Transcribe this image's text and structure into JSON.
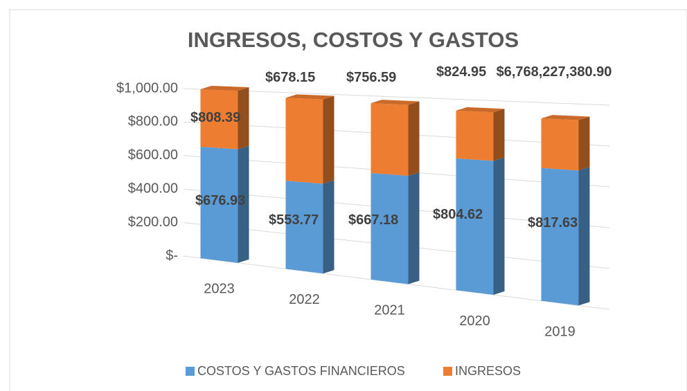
{
  "chart_data": {
    "type": "bar",
    "stacked": true,
    "title": "INGRESOS, COSTOS Y GASTOS",
    "categories": [
      "2023",
      "2022",
      "2021",
      "2020",
      "2019"
    ],
    "series": [
      {
        "name": "COSTOS Y GASTOS FINANCIEROS",
        "color": "#5b9bd5",
        "values": [
          660,
          500,
          580,
          690,
          670
        ]
      },
      {
        "name": "INGRESOS",
        "color": "#ed7d31",
        "values": [
          340,
          470,
          380,
          250,
          250
        ]
      }
    ],
    "annotations": [
      "$676.93",
      "$553.77",
      "$667.18",
      "$804.62",
      "$817.63",
      "$808.39",
      "$678.15",
      "$756.59",
      "$824.95",
      "$6,768,227,380.90"
    ],
    "ylim": [
      0,
      1000
    ],
    "yticks": [
      {
        "value": 0,
        "label": "$-"
      },
      {
        "value": 200,
        "label": "$200.00"
      },
      {
        "value": 400,
        "label": "$400.00"
      },
      {
        "value": 600,
        "label": "$600.00"
      },
      {
        "value": 800,
        "label": "$800.00"
      },
      {
        "value": 1000,
        "label": "$1,000.00"
      }
    ],
    "grid": true,
    "legend": "bottom"
  }
}
